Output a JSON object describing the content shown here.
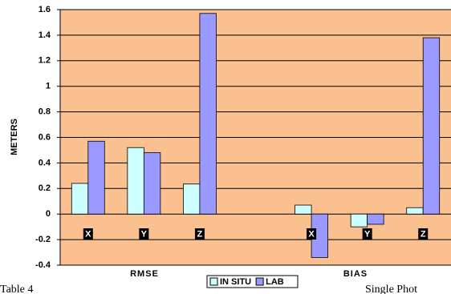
{
  "chart_data": {
    "type": "bar",
    "y_label": "METERS",
    "categories": [
      "X",
      "Y",
      "Z",
      null,
      "X",
      "Y",
      "Z"
    ],
    "groups": [
      "RMSE",
      "BIAS"
    ],
    "series": [
      {
        "name": "IN SITU",
        "color": "#ccffff",
        "values": [
          0.24,
          0.52,
          0.235,
          null,
          0.07,
          -0.1,
          0.05
        ]
      },
      {
        "name": "LAB",
        "color": "#9999ff",
        "values": [
          0.57,
          0.48,
          1.57,
          null,
          -0.34,
          -0.08,
          1.38
        ]
      }
    ],
    "ylim": [
      -0.4,
      1.6
    ],
    "yticks": [
      -0.4,
      -0.2,
      0,
      0.2,
      0.4,
      0.6,
      0.8,
      1,
      1.2,
      1.4,
      1.6
    ],
    "grid": true,
    "background": "#fac090",
    "legend": "bottom"
  },
  "document": {
    "caption_left": "Table 4",
    "caption_right": "Single Phot"
  }
}
